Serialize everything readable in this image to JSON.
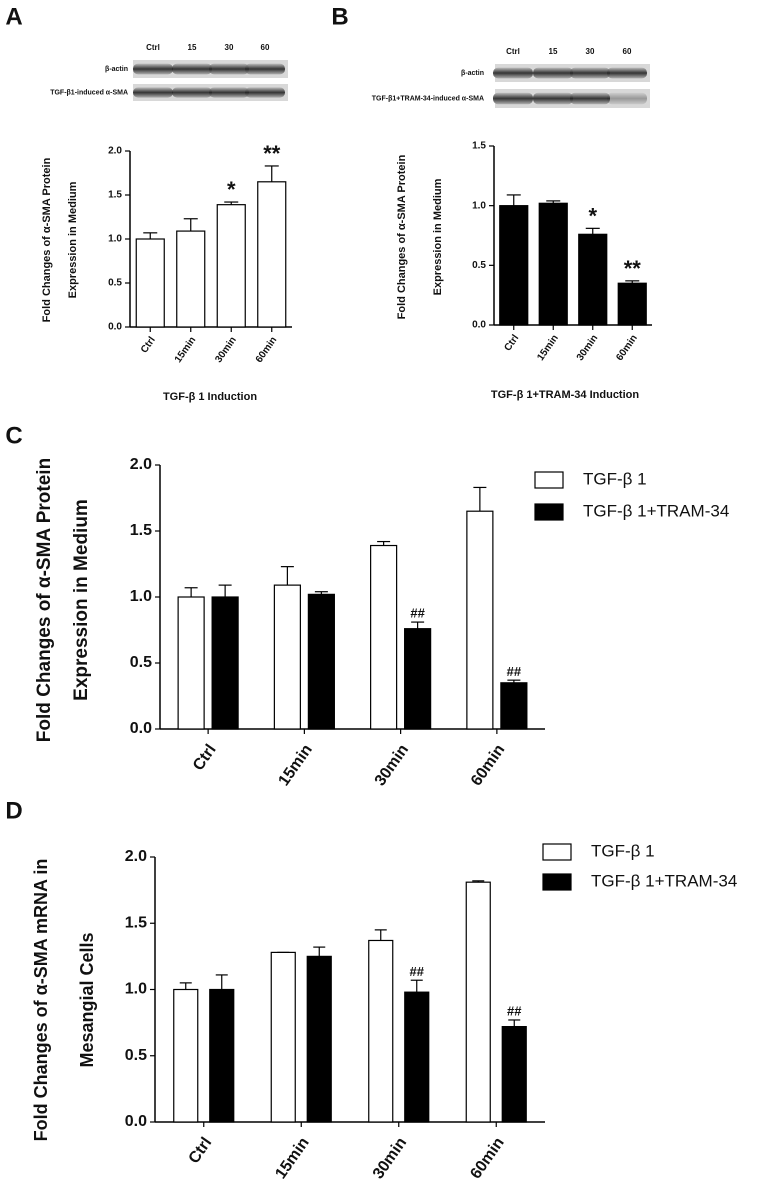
{
  "panel_labels": [
    "A",
    "B",
    "C",
    "D"
  ],
  "blots": [
    {
      "lanes": [
        "Ctrl",
        "15",
        "30",
        "60"
      ],
      "rows": [
        "β-actin",
        "TGF-β1-induced α-SMA"
      ]
    },
    {
      "lanes": [
        "Ctrl",
        "15",
        "30",
        "60"
      ],
      "rows": [
        "β-actin",
        "TGF-β1+TRAM-34-induced α-SMA"
      ]
    }
  ],
  "chart_data": [
    {
      "type": "bar",
      "xlabel": "TGF-β 1 Induction",
      "ylabel": [
        "Fold Changes of  α-SMA  Protein",
        "Expression in Medium"
      ],
      "categories": [
        "Ctrl",
        "15min",
        "30min",
        "60min"
      ],
      "values": [
        1.0,
        1.09,
        1.39,
        1.65
      ],
      "errors": [
        0.07,
        0.14,
        0.03,
        0.18
      ],
      "annotations": [
        null,
        null,
        "*",
        "**"
      ],
      "color": "#ffffff",
      "ylim": [
        0,
        2
      ],
      "yticks": [
        {
          "value": 0,
          "label": "0.0"
        },
        {
          "value": 0.5,
          "label": "0.5"
        },
        {
          "value": 1,
          "label": "1.0"
        },
        {
          "value": 1.5,
          "label": "1.5"
        },
        {
          "value": 2,
          "label": "2.0"
        }
      ]
    },
    {
      "type": "bar",
      "xlabel": "TGF-β 1+TRAM-34 Induction",
      "ylabel": [
        "Fold Changes of α-SMA Protein",
        "Expression in Medium"
      ],
      "categories": [
        "Ctrl",
        "15min",
        "30min",
        "60min"
      ],
      "values": [
        1.0,
        1.02,
        0.76,
        0.35
      ],
      "errors": [
        0.09,
        0.02,
        0.05,
        0.02
      ],
      "annotations": [
        null,
        null,
        "*",
        "**"
      ],
      "color": "#000000",
      "ylim": [
        0,
        1.5
      ],
      "yticks": [
        {
          "value": 0,
          "label": "0.0"
        },
        {
          "value": 0.5,
          "label": "0.5"
        },
        {
          "value": 1,
          "label": "1.0"
        },
        {
          "value": 1.5,
          "label": "1.5"
        }
      ]
    },
    {
      "type": "bar",
      "ylabel": [
        "Fold Changes of α-SMA Protein",
        "Expression in Medium"
      ],
      "categories": [
        "Ctrl",
        "15min",
        "30min",
        "60min"
      ],
      "series": [
        {
          "name": "TGF-β 1",
          "color": "#ffffff",
          "values": [
            1.0,
            1.09,
            1.39,
            1.65
          ],
          "errors": [
            0.07,
            0.14,
            0.03,
            0.18
          ],
          "annotations": [
            null,
            null,
            null,
            null
          ]
        },
        {
          "name": "TGF-β 1+TRAM-34",
          "color": "#000000",
          "values": [
            1.0,
            1.02,
            0.76,
            0.35
          ],
          "errors": [
            0.09,
            0.02,
            0.05,
            0.02
          ],
          "annotations": [
            null,
            null,
            "##",
            "##"
          ]
        }
      ],
      "ylim": [
        0,
        2
      ],
      "yticks": [
        {
          "value": 0,
          "label": "0.0"
        },
        {
          "value": 0.5,
          "label": "0.5"
        },
        {
          "value": 1,
          "label": "1.0"
        },
        {
          "value": 1.5,
          "label": "1.5"
        },
        {
          "value": 2,
          "label": "2.0"
        }
      ]
    },
    {
      "type": "bar",
      "ylabel": [
        "Fold Changes of α-SMA mRNA in",
        "Mesangial Cells"
      ],
      "categories": [
        "Ctrl",
        "15min",
        "30min",
        "60min"
      ],
      "series": [
        {
          "name": "TGF-β 1",
          "color": "#ffffff",
          "values": [
            1.0,
            1.28,
            1.37,
            1.81
          ],
          "errors": [
            0.05,
            0.0,
            0.08,
            0.01
          ],
          "annotations": [
            null,
            null,
            null,
            null
          ]
        },
        {
          "name": "TGF-β 1+TRAM-34",
          "color": "#000000",
          "values": [
            1.0,
            1.25,
            0.98,
            0.72
          ],
          "errors": [
            0.11,
            0.07,
            0.09,
            0.05
          ],
          "annotations": [
            null,
            null,
            "##",
            "##"
          ]
        }
      ],
      "ylim": [
        0,
        2
      ],
      "yticks": [
        {
          "value": 0,
          "label": "0.0"
        },
        {
          "value": 0.5,
          "label": "0.5"
        },
        {
          "value": 1,
          "label": "1.0"
        },
        {
          "value": 1.5,
          "label": "1.5"
        },
        {
          "value": 2,
          "label": "2.0"
        }
      ]
    }
  ]
}
